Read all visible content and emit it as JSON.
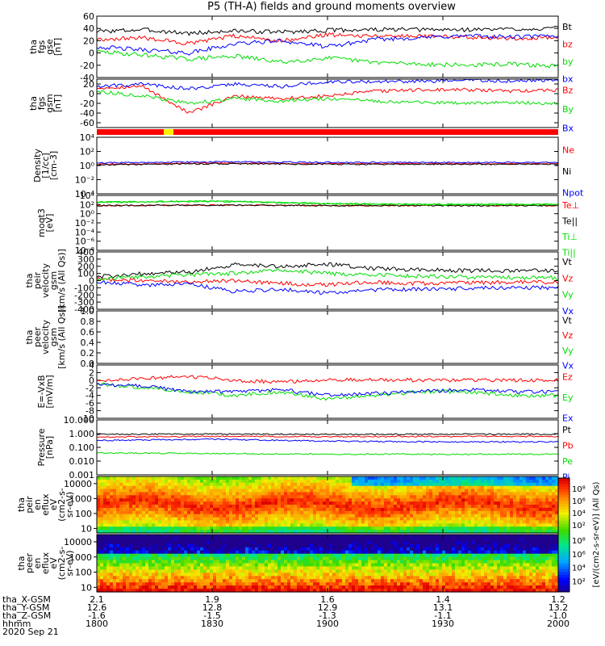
{
  "title": "P5 (TH-A) fields and ground moments overview",
  "date": "2020 Sep 21",
  "ephemeris": {
    "labels": [
      "tha_X-GSM",
      "tha_Y-GSM",
      "tha_Z-GSM",
      "hhmm"
    ],
    "columns": [
      [
        "2.1",
        "12.6",
        "-1.6",
        "1800"
      ],
      [
        "1.9",
        "12.8",
        "-1.5",
        "1830"
      ],
      [
        "1.6",
        "12.9",
        "-1.3",
        "1900"
      ],
      [
        "1.4",
        "13.1",
        "-1.1",
        "1930"
      ],
      [
        "1.2",
        "13.2",
        "-1.0",
        "2000"
      ]
    ]
  },
  "colors": {
    "black": "#000000",
    "red": "#ff0000",
    "green": "#00dd00",
    "blue": "#0000ff",
    "amber": "#ffaa00"
  },
  "chart_data": [
    {
      "type": "line",
      "ylabel": [
        "tha",
        "fgs",
        "gse",
        "[nT]"
      ],
      "ylim": [
        -40,
        60
      ],
      "yticks": [
        "60",
        "40",
        "20",
        "0",
        "-20",
        "-40"
      ],
      "series": [
        {
          "name": "Bt",
          "color": "#000000",
          "x": [
            0,
            0.1,
            0.2,
            0.3,
            0.4,
            0.5,
            0.6,
            0.7,
            0.8,
            0.9,
            1
          ],
          "values": [
            35,
            38,
            32,
            36,
            34,
            37,
            38,
            38,
            38,
            39,
            40
          ]
        },
        {
          "name": "bz",
          "color": "#ff0000",
          "x": [
            0,
            0.1,
            0.2,
            0.3,
            0.4,
            0.5,
            0.6,
            0.7,
            0.8,
            0.9,
            1
          ],
          "values": [
            22,
            25,
            15,
            28,
            20,
            30,
            28,
            28,
            26,
            24,
            25
          ]
        },
        {
          "name": "by",
          "color": "#00dd00",
          "x": [
            0,
            0.1,
            0.2,
            0.3,
            0.4,
            0.5,
            0.6,
            0.7,
            0.8,
            0.9,
            1
          ],
          "values": [
            2,
            -3,
            -10,
            -5,
            -15,
            -8,
            -15,
            -18,
            -20,
            -18,
            -22
          ]
        },
        {
          "name": "bx",
          "color": "#0000ff",
          "x": [
            0,
            0.1,
            0.2,
            0.3,
            0.4,
            0.5,
            0.6,
            0.7,
            0.8,
            0.9,
            1
          ],
          "values": [
            10,
            5,
            0,
            15,
            20,
            10,
            22,
            25,
            28,
            26,
            28
          ]
        }
      ]
    },
    {
      "type": "line",
      "ylabel": [
        "tha",
        "fgs",
        "gsm",
        "[nT]"
      ],
      "ylim": [
        -70,
        30
      ],
      "yticks": [
        "20",
        "0",
        "-20",
        "-40",
        "-60"
      ],
      "series": [
        {
          "name": "Bz",
          "color": "#ff0000",
          "x": [
            0,
            0.1,
            0.2,
            0.3,
            0.4,
            0.5,
            0.6,
            0.7,
            0.8,
            0.9,
            1
          ],
          "values": [
            12,
            15,
            -40,
            -5,
            -10,
            -5,
            5,
            8,
            8,
            5,
            8
          ]
        },
        {
          "name": "By",
          "color": "#00dd00",
          "x": [
            0,
            0.1,
            0.2,
            0.3,
            0.4,
            0.5,
            0.6,
            0.7,
            0.8,
            0.9,
            1
          ],
          "values": [
            5,
            -5,
            -20,
            -10,
            -15,
            -10,
            -15,
            -18,
            -20,
            -18,
            -20
          ]
        },
        {
          "name": "Bx",
          "color": "#0000ff",
          "x": [
            0,
            0.1,
            0.2,
            0.3,
            0.4,
            0.5,
            0.6,
            0.7,
            0.8,
            0.9,
            1
          ],
          "values": [
            15,
            20,
            10,
            20,
            15,
            25,
            25,
            25,
            28,
            26,
            28
          ]
        }
      ]
    },
    {
      "type": "line",
      "ylabel": [
        "Density",
        "[1/cc]",
        "[cm-3]"
      ],
      "ylim": [
        -4,
        5
      ],
      "yscale": "log",
      "yticks": [
        "10⁴",
        "10²",
        "10⁰",
        "10⁻²",
        "10⁻⁴"
      ],
      "series": [
        {
          "name": "Ne",
          "color": "#ff0000",
          "x": [
            0,
            0.25,
            0.5,
            0.75,
            1
          ],
          "values": [
            0.7,
            0.9,
            0.8,
            0.8,
            0.8
          ]
        },
        {
          "name": "Ni",
          "color": "#000000",
          "x": [
            0,
            0.25,
            0.5,
            0.75,
            1
          ],
          "values": [
            0.6,
            0.8,
            0.7,
            0.7,
            0.7
          ]
        },
        {
          "name": "Npot",
          "color": "#0000ff",
          "x": [
            0,
            0.25,
            0.5,
            0.75,
            1
          ],
          "values": [
            0.9,
            1.1,
            1,
            1,
            1
          ]
        }
      ]
    },
    {
      "type": "line",
      "ylabel": [
        "moqt3",
        "[eV]"
      ],
      "ylim": [
        -8,
        5
      ],
      "yscale": "log",
      "yticks": [
        "10⁴",
        "10²",
        "10⁰",
        "10⁻²",
        "10⁻⁴",
        "10⁻⁶",
        "10⁻⁸"
      ],
      "series": [
        {
          "name": "Te⊥",
          "color": "#ff0000",
          "x": [
            0,
            0.25,
            0.5,
            0.75,
            1
          ],
          "values": [
            2.6,
            2.7,
            2.6,
            2.6,
            2.6
          ]
        },
        {
          "name": "Te||",
          "color": "#000000",
          "x": [
            0,
            0.25,
            0.5,
            0.75,
            1
          ],
          "values": [
            2.6,
            2.7,
            2.6,
            2.6,
            2.6
          ]
        },
        {
          "name": "Ti⊥",
          "color": "#00dd00",
          "x": [
            0,
            0.25,
            0.5,
            0.75,
            1
          ],
          "values": [
            3.3,
            3.6,
            3,
            2.8,
            2.8
          ]
        },
        {
          "name": "Ti||",
          "color": "#00dd00",
          "x": [
            0,
            0.25,
            0.5,
            0.75,
            1
          ],
          "values": [
            3.4,
            3.7,
            3.1,
            2.9,
            2.9
          ]
        }
      ]
    },
    {
      "type": "line",
      "ylabel": [
        "tha",
        "peir",
        "velocity",
        "gsm",
        "[km/s (All Qs)]"
      ],
      "ylim": [
        -400,
        400
      ],
      "yticks": [
        "400",
        "300",
        "200",
        "100",
        "0",
        "-100",
        "-200",
        "-300",
        "-400"
      ],
      "series": [
        {
          "name": "Vt",
          "color": "#000000",
          "x": [
            0,
            0.1,
            0.2,
            0.3,
            0.4,
            0.5,
            0.6,
            0.7,
            0.8,
            0.9,
            1
          ],
          "values": [
            50,
            100,
            120,
            220,
            200,
            230,
            170,
            150,
            140,
            140,
            140
          ]
        },
        {
          "name": "Vz",
          "color": "#ff0000",
          "x": [
            0,
            0.1,
            0.2,
            0.3,
            0.4,
            0.5,
            0.6,
            0.7,
            0.8,
            0.9,
            1
          ],
          "values": [
            20,
            0,
            -20,
            0,
            -40,
            -60,
            -20,
            -40,
            -30,
            -20,
            -30
          ]
        },
        {
          "name": "Vy",
          "color": "#00dd00",
          "x": [
            0,
            0.1,
            0.2,
            0.3,
            0.4,
            0.5,
            0.6,
            0.7,
            0.8,
            0.9,
            1
          ],
          "values": [
            30,
            50,
            80,
            100,
            150,
            100,
            80,
            60,
            50,
            40,
            40
          ]
        },
        {
          "name": "Vx",
          "color": "#0000ff",
          "x": [
            0,
            0.1,
            0.2,
            0.3,
            0.4,
            0.5,
            0.6,
            0.7,
            0.8,
            0.9,
            1
          ],
          "values": [
            -20,
            -60,
            -50,
            -150,
            -120,
            -180,
            -130,
            -120,
            -110,
            -100,
            -100
          ]
        }
      ]
    },
    {
      "type": "line",
      "ylabel": [
        "tha",
        "peer",
        "velocity",
        "gsm",
        "[km/s (All Qs)]"
      ],
      "ylim": [
        0,
        1
      ],
      "yticks": [
        "1.0",
        "0.8",
        "0.6",
        "0.4",
        "0.2",
        "0.0"
      ],
      "series": [
        {
          "name": "Vt",
          "color": "#000000",
          "x": [],
          "values": []
        },
        {
          "name": "Vz",
          "color": "#ff0000",
          "x": [],
          "values": []
        },
        {
          "name": "Vy",
          "color": "#00dd00",
          "x": [],
          "values": []
        },
        {
          "name": "Vx",
          "color": "#0000ff",
          "x": [],
          "values": []
        }
      ]
    },
    {
      "type": "line",
      "ylabel": [
        "E=-VxB",
        "[mV/m]"
      ],
      "ylim": [
        -10,
        4
      ],
      "yticks": [
        "4",
        "2",
        "0",
        "-2",
        "-4",
        "-6",
        "-8",
        "-10"
      ],
      "series": [
        {
          "name": "Ez",
          "color": "#ff0000",
          "x": [
            0,
            0.1,
            0.2,
            0.3,
            0.4,
            0.5,
            0.6,
            0.7,
            0.8,
            0.9,
            1
          ],
          "values": [
            0,
            0.5,
            1,
            0,
            -0.5,
            0,
            0.2,
            0,
            0,
            0,
            0
          ]
        },
        {
          "name": "Ey",
          "color": "#00dd00",
          "x": [
            0,
            0.1,
            0.2,
            0.3,
            0.4,
            0.5,
            0.6,
            0.7,
            0.8,
            0.9,
            1
          ],
          "values": [
            -1,
            -2,
            -3,
            -4,
            -3,
            -5,
            -4,
            -3,
            -3,
            -4,
            -4
          ]
        },
        {
          "name": "Ex",
          "color": "#0000ff",
          "x": [
            0,
            0.1,
            0.2,
            0.3,
            0.4,
            0.5,
            0.6,
            0.7,
            0.8,
            0.9,
            1
          ],
          "values": [
            -1,
            -1.5,
            -3,
            -3,
            -2.5,
            -4,
            -3.5,
            -3,
            -2.5,
            -3,
            -3
          ]
        }
      ]
    },
    {
      "type": "line",
      "ylabel": [
        "Pressure",
        "[nPa]"
      ],
      "ylim": [
        -3,
        1
      ],
      "yscale": "log",
      "yticks": [
        "10.000",
        "1.000",
        "0.100",
        "0.010",
        "0.001"
      ],
      "series": [
        {
          "name": "Pt",
          "color": "#000000",
          "x": [
            0,
            0.25,
            0.5,
            0.75,
            1
          ],
          "values": [
            -0.05,
            -0.03,
            -0.05,
            -0.04,
            -0.04
          ]
        },
        {
          "name": "Pb",
          "color": "#ff0000",
          "x": [
            0,
            0.25,
            0.5,
            0.75,
            1
          ],
          "values": [
            -0.25,
            -0.2,
            -0.22,
            -0.2,
            -0.2
          ]
        },
        {
          "name": "Pe",
          "color": "#00dd00",
          "x": [
            0,
            0.25,
            0.5,
            0.75,
            1
          ],
          "values": [
            -1.4,
            -1.45,
            -1.5,
            -1.5,
            -1.5
          ]
        },
        {
          "name": "Pi",
          "color": "#0000ff",
          "x": [
            0,
            0.25,
            0.5,
            0.75,
            1
          ],
          "values": [
            -0.5,
            -0.4,
            -0.55,
            -0.6,
            -0.6
          ]
        }
      ]
    },
    {
      "type": "heatmap",
      "ylabel": [
        "tha",
        "peir",
        "en",
        "eflux",
        "eV",
        "(cm2-s-",
        "sr-eV)"
      ],
      "ylim": [
        5,
        30000
      ],
      "yscale": "log",
      "yticks": [
        "10000",
        "1000",
        "100",
        "10"
      ],
      "colorbar": [
        "10⁸",
        "10⁶",
        "10⁴",
        "10²"
      ]
    },
    {
      "type": "heatmap",
      "ylabel": [
        "tha",
        "peer",
        "en",
        "eflux",
        "eV",
        "(cm2-s-",
        "sr-eV)"
      ],
      "ylim": [
        5,
        30000
      ],
      "yscale": "log",
      "yticks": [
        "10000",
        "1000",
        "100",
        "10"
      ],
      "colorbar": [
        "10⁸",
        "10⁶",
        "10⁴",
        "10²"
      ]
    }
  ],
  "colorbar_title": "[eV/(cm2-s-sr-eV)] (All Qs)"
}
